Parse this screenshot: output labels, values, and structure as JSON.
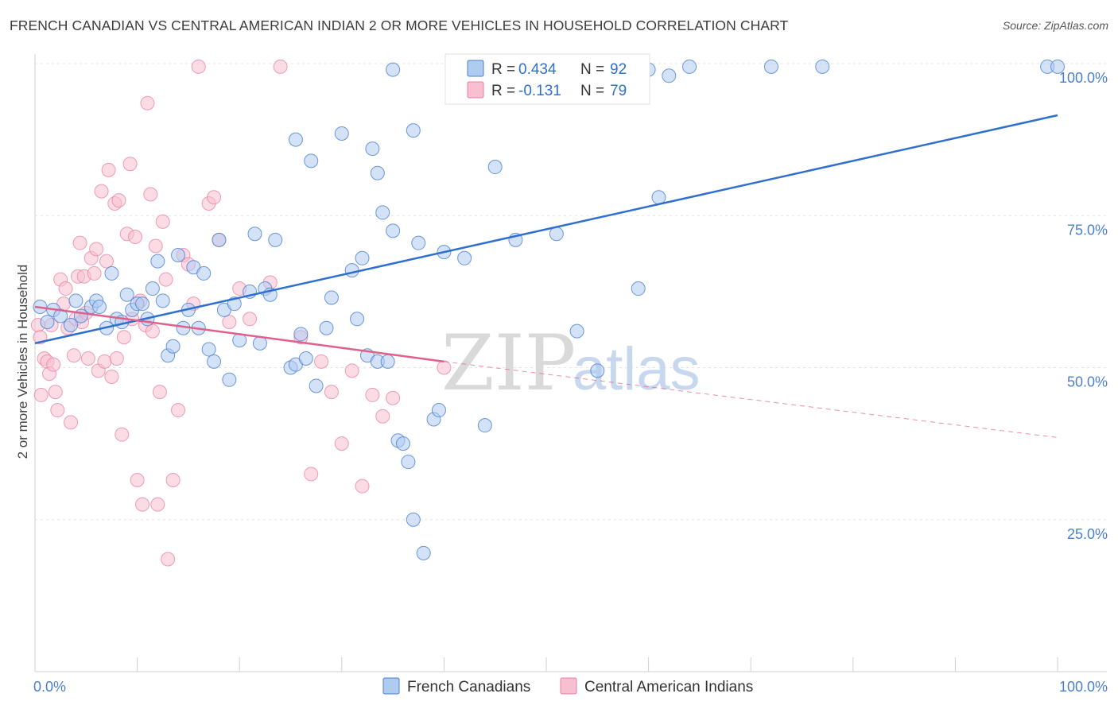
{
  "title": "FRENCH CANADIAN VS CENTRAL AMERICAN INDIAN 2 OR MORE VEHICLES IN HOUSEHOLD CORRELATION CHART",
  "source": "Source: ZipAtlas.com",
  "watermark": {
    "zip": "ZIP",
    "atlas": "atlas"
  },
  "colors": {
    "blue": "#4a7fd0",
    "pink": "#e87fa0",
    "blue_fill": "#aecbf0",
    "pink_fill": "#f7bfd0",
    "blue_line": "#2f6fd0",
    "pink_line": "#e0608a"
  },
  "legend": {
    "r_label": "R =",
    "n_label": "N =",
    "rows": [
      {
        "r": "0.434",
        "n": "92"
      },
      {
        "r": "-0.131",
        "n": "79"
      }
    ]
  },
  "chart_data": {
    "type": "scatter",
    "title": "FRENCH CANADIAN VS CENTRAL AMERICAN INDIAN 2 OR MORE VEHICLES IN HOUSEHOLD CORRELATION CHART",
    "xlabel": "",
    "ylabel": "2 or more Vehicles in Household",
    "xlim": [
      0,
      100
    ],
    "ylim": [
      0,
      100
    ],
    "x_tick_labels": [
      "0.0%",
      "100.0%"
    ],
    "y_tick_labels": [
      "25.0%",
      "50.0%",
      "75.0%",
      "100.0%"
    ],
    "y_ticks": [
      25,
      50,
      75,
      100
    ],
    "grid": true,
    "legend_position": "bottom",
    "series": [
      {
        "name": "French Canadians",
        "color": "#4a7fd0",
        "r": 0.434,
        "n": 92,
        "trend": {
          "x": [
            0,
            100
          ],
          "y": [
            54,
            91.5
          ]
        },
        "points": [
          [
            0.5,
            60
          ],
          [
            1.2,
            57.5
          ],
          [
            1.8,
            59.5
          ],
          [
            2.5,
            58.5
          ],
          [
            3.5,
            57
          ],
          [
            4,
            61
          ],
          [
            4.5,
            58.5
          ],
          [
            5.5,
            60
          ],
          [
            6,
            61
          ],
          [
            6.3,
            60
          ],
          [
            7,
            56.5
          ],
          [
            7.5,
            65.5
          ],
          [
            8,
            58
          ],
          [
            8.5,
            57.5
          ],
          [
            9,
            62
          ],
          [
            9.5,
            59.5
          ],
          [
            10,
            60.5
          ],
          [
            10.5,
            60.5
          ],
          [
            11,
            58
          ],
          [
            11.5,
            63
          ],
          [
            12,
            67.5
          ],
          [
            12.5,
            61
          ],
          [
            13,
            52
          ],
          [
            13.5,
            53.5
          ],
          [
            14,
            68.5
          ],
          [
            14.5,
            56.5
          ],
          [
            15,
            59.5
          ],
          [
            15.5,
            66.5
          ],
          [
            16,
            56.5
          ],
          [
            16.5,
            65.5
          ],
          [
            17,
            53
          ],
          [
            17.5,
            51
          ],
          [
            18,
            71
          ],
          [
            18.5,
            59.5
          ],
          [
            19,
            48
          ],
          [
            19.5,
            60.5
          ],
          [
            20,
            54.5
          ],
          [
            21,
            62.5
          ],
          [
            21.5,
            72
          ],
          [
            22,
            54
          ],
          [
            22.5,
            63
          ],
          [
            23,
            62
          ],
          [
            23.5,
            71
          ],
          [
            25,
            50
          ],
          [
            25.5,
            50.5
          ],
          [
            26,
            55.5
          ],
          [
            25.5,
            87.5
          ],
          [
            26.5,
            51.5
          ],
          [
            27,
            84
          ],
          [
            27.5,
            47
          ],
          [
            28.5,
            56.5
          ],
          [
            29,
            61.5
          ],
          [
            30,
            88.5
          ],
          [
            31,
            66
          ],
          [
            31.5,
            58
          ],
          [
            32,
            68
          ],
          [
            32.5,
            52
          ],
          [
            33,
            86
          ],
          [
            33.5,
            82
          ],
          [
            33.5,
            51
          ],
          [
            34,
            75.5
          ],
          [
            34.5,
            51
          ],
          [
            35,
            72.5
          ],
          [
            35.5,
            38
          ],
          [
            36,
            37.5
          ],
          [
            36.5,
            34.5
          ],
          [
            37,
            89
          ],
          [
            37,
            25
          ],
          [
            37.5,
            70.5
          ],
          [
            38,
            19.5
          ],
          [
            39,
            41.5
          ],
          [
            39.5,
            43
          ],
          [
            40,
            69
          ],
          [
            42,
            68
          ],
          [
            44,
            40.5
          ],
          [
            45,
            83
          ],
          [
            47,
            71
          ],
          [
            49,
            99.5
          ],
          [
            51,
            72
          ],
          [
            53,
            56
          ],
          [
            55,
            49.5
          ],
          [
            59,
            63
          ],
          [
            60,
            99
          ],
          [
            61,
            78
          ],
          [
            62,
            98
          ],
          [
            64,
            99.5
          ],
          [
            72,
            99.5
          ],
          [
            77,
            99.5
          ],
          [
            99,
            99.5
          ],
          [
            100,
            99.5
          ],
          [
            35,
            99
          ],
          [
            44,
            99.5
          ]
        ]
      },
      {
        "name": "Central American Indians",
        "color": "#e87fa0",
        "r": -0.131,
        "n": 79,
        "trend": {
          "x": [
            0,
            40
          ],
          "y": [
            60,
            51
          ],
          "dashed_to": [
            100,
            38.5
          ]
        },
        "points": [
          [
            0.3,
            57
          ],
          [
            0.5,
            55
          ],
          [
            0.6,
            45.5
          ],
          [
            0.9,
            51.5
          ],
          [
            1.2,
            51
          ],
          [
            1.4,
            49
          ],
          [
            1.6,
            57
          ],
          [
            1.8,
            50.5
          ],
          [
            2,
            46
          ],
          [
            2.2,
            43
          ],
          [
            2.5,
            64.5
          ],
          [
            2.8,
            60.5
          ],
          [
            3,
            63
          ],
          [
            3.2,
            56.5
          ],
          [
            3.5,
            41
          ],
          [
            3.8,
            52
          ],
          [
            4,
            58
          ],
          [
            4.2,
            65
          ],
          [
            4.4,
            70.5
          ],
          [
            4.6,
            57.5
          ],
          [
            4.8,
            65
          ],
          [
            5,
            59
          ],
          [
            5.2,
            51.5
          ],
          [
            5.5,
            68
          ],
          [
            5.8,
            65.5
          ],
          [
            6,
            69.5
          ],
          [
            6.2,
            49.5
          ],
          [
            6.5,
            79
          ],
          [
            6.8,
            51
          ],
          [
            7,
            67.5
          ],
          [
            7.2,
            82.5
          ],
          [
            7.5,
            48.5
          ],
          [
            7.8,
            77
          ],
          [
            8,
            51.5
          ],
          [
            8.2,
            77.5
          ],
          [
            8.5,
            39
          ],
          [
            8.7,
            55
          ],
          [
            9,
            72
          ],
          [
            9.3,
            83.5
          ],
          [
            9.5,
            58
          ],
          [
            9.8,
            71.5
          ],
          [
            10,
            31.5
          ],
          [
            10.3,
            61
          ],
          [
            10.5,
            27.5
          ],
          [
            10.8,
            57
          ],
          [
            11,
            93.5
          ],
          [
            11.3,
            78.5
          ],
          [
            11.5,
            56
          ],
          [
            11.8,
            70
          ],
          [
            12,
            27.5
          ],
          [
            12.2,
            46
          ],
          [
            12.5,
            74
          ],
          [
            12.8,
            64.5
          ],
          [
            13,
            18.5
          ],
          [
            13.5,
            31.5
          ],
          [
            14,
            43
          ],
          [
            14.5,
            68.5
          ],
          [
            15,
            67
          ],
          [
            15.5,
            60.5
          ],
          [
            16,
            99.5
          ],
          [
            17,
            77
          ],
          [
            17.5,
            78
          ],
          [
            18,
            71
          ],
          [
            19,
            57.5
          ],
          [
            20,
            63
          ],
          [
            21,
            58
          ],
          [
            23,
            64
          ],
          [
            24,
            99.5
          ],
          [
            26,
            55
          ],
          [
            27,
            32.5
          ],
          [
            28,
            51
          ],
          [
            29,
            46
          ],
          [
            30,
            37.5
          ],
          [
            31,
            49.5
          ],
          [
            32,
            30.5
          ],
          [
            33,
            45.5
          ],
          [
            34,
            42
          ],
          [
            35,
            45
          ],
          [
            40,
            50
          ]
        ]
      }
    ]
  },
  "bottom_legend": [
    "French Canadians",
    "Central American Indians"
  ]
}
